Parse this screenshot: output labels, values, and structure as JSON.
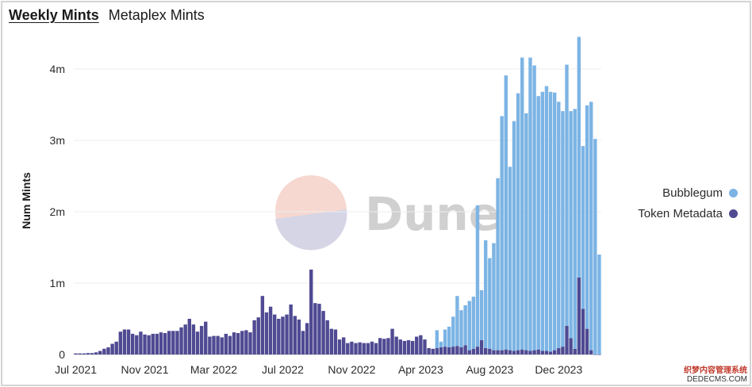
{
  "tabs": [
    {
      "label": "Weekly Mints",
      "active": true
    },
    {
      "label": "Metaplex Mints",
      "active": false
    }
  ],
  "watermark": "Dune",
  "corner_mark": {
    "line1": "织梦内容管理系统",
    "line2": "DEDECMS.COM"
  },
  "colors": {
    "bubblegum": "#7cb4e4",
    "token_metadata": "#4f4a92",
    "grid": "#ececec"
  },
  "chart_data": {
    "type": "bar",
    "stacked": true,
    "ylabel": "Num Mints",
    "ylim": [
      0,
      4300000
    ],
    "yticks": [
      0,
      1000000,
      2000000,
      3000000,
      4000000
    ],
    "ytick_labels": [
      "0",
      "1m",
      "2m",
      "3m",
      "4m"
    ],
    "xtick_labels": [
      {
        "week": 0,
        "label": "Jul 2021"
      },
      {
        "week": 17,
        "label": "Nov 2021"
      },
      {
        "week": 34,
        "label": "Mar 2022"
      },
      {
        "week": 51,
        "label": "Jul 2022"
      },
      {
        "week": 68,
        "label": "Nov 2022"
      },
      {
        "week": 85,
        "label": "Apr 2023"
      },
      {
        "week": 102,
        "label": "Aug 2023"
      },
      {
        "week": 119,
        "label": "Dec 2023"
      }
    ],
    "grid": true,
    "legend_position": "right",
    "series": [
      {
        "name": "Bubblegum",
        "values": [
          0,
          0,
          0,
          0,
          0,
          0,
          0,
          0,
          0,
          0,
          0,
          0,
          0,
          0,
          0,
          0,
          0,
          0,
          0,
          0,
          0,
          0,
          0,
          0,
          0,
          0,
          0,
          0,
          0,
          0,
          0,
          0,
          0,
          0,
          0,
          0,
          0,
          0,
          0,
          0,
          0,
          0,
          0,
          0,
          0,
          0,
          0,
          0,
          0,
          0,
          0,
          0,
          0,
          0,
          0,
          0,
          0,
          0,
          0,
          0,
          0,
          0,
          0,
          0,
          0,
          0,
          0,
          0,
          0,
          0,
          0,
          0,
          0,
          0,
          0,
          0,
          0,
          0,
          0,
          0,
          0,
          0,
          0,
          0,
          0,
          0,
          0,
          0,
          0,
          250000,
          80000,
          240000,
          290000,
          420000,
          700000,
          520000,
          560000,
          690000,
          730000,
          1980000,
          700000,
          1510000,
          1270000,
          1500000,
          2410000,
          3280000,
          3840000,
          2570000,
          3220000,
          3600000,
          4090000,
          3320000,
          4110000,
          3990000,
          3550000,
          3630000,
          3710000,
          3640000,
          3610000,
          3450000,
          3300000,
          3660000,
          3180000,
          3360000,
          3370000,
          2280000,
          3130000,
          3480000,
          3020000,
          1400000
        ]
      },
      {
        "name": "Token Metadata",
        "values": [
          15000,
          15000,
          15000,
          20000,
          20000,
          30000,
          50000,
          80000,
          100000,
          150000,
          180000,
          320000,
          350000,
          350000,
          290000,
          270000,
          320000,
          280000,
          270000,
          290000,
          290000,
          310000,
          300000,
          330000,
          330000,
          330000,
          380000,
          420000,
          500000,
          420000,
          320000,
          400000,
          460000,
          250000,
          260000,
          260000,
          240000,
          290000,
          260000,
          310000,
          300000,
          330000,
          340000,
          310000,
          480000,
          520000,
          820000,
          590000,
          670000,
          560000,
          500000,
          530000,
          560000,
          700000,
          540000,
          490000,
          330000,
          440000,
          1190000,
          720000,
          710000,
          610000,
          480000,
          360000,
          350000,
          210000,
          240000,
          160000,
          180000,
          160000,
          170000,
          160000,
          160000,
          180000,
          160000,
          230000,
          220000,
          230000,
          360000,
          250000,
          210000,
          190000,
          200000,
          190000,
          250000,
          270000,
          210000,
          90000,
          80000,
          90000,
          100000,
          110000,
          100000,
          110000,
          120000,
          100000,
          130000,
          60000,
          80000,
          110000,
          200000,
          90000,
          80000,
          60000,
          60000,
          60000,
          70000,
          60000,
          50000,
          60000,
          70000,
          60000,
          50000,
          60000,
          70000,
          50000,
          50000,
          40000,
          60000,
          90000,
          110000,
          400000,
          230000,
          80000,
          1080000,
          640000,
          360000,
          60000
        ]
      }
    ]
  }
}
